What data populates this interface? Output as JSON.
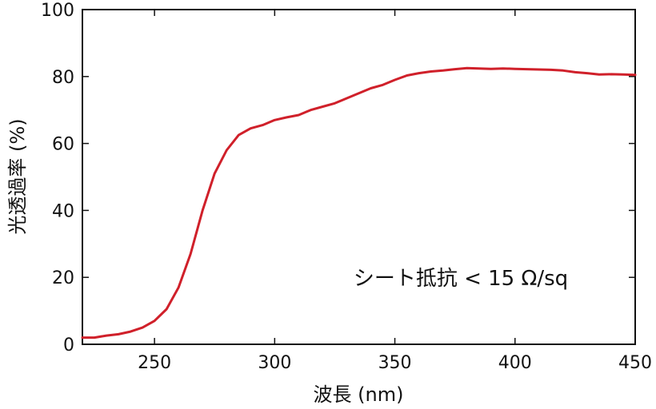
{
  "chart_data": {
    "type": "line",
    "title": "",
    "xlabel": "波長 (nm)",
    "ylabel": "光透過率 (%)",
    "xlim": [
      220,
      450
    ],
    "ylim": [
      0,
      100
    ],
    "x_ticks": [
      250,
      300,
      350,
      400,
      450
    ],
    "y_ticks": [
      0,
      20,
      40,
      60,
      80,
      100
    ],
    "x_tick_labels": [
      "250",
      "300",
      "350",
      "400",
      "450"
    ],
    "y_tick_labels": [
      "0",
      "20",
      "40",
      "60",
      "80",
      "100"
    ],
    "grid": false,
    "annotation": "シート抵抗 < 15 Ω/sq",
    "series": [
      {
        "color": "#d0202a",
        "x": [
          220,
          225,
          230,
          235,
          240,
          245,
          250,
          255,
          260,
          265,
          270,
          275,
          280,
          285,
          290,
          295,
          300,
          305,
          310,
          315,
          320,
          325,
          330,
          335,
          340,
          345,
          350,
          355,
          360,
          365,
          370,
          375,
          380,
          385,
          390,
          395,
          400,
          405,
          410,
          415,
          420,
          425,
          430,
          435,
          440,
          445,
          450
        ],
        "y": [
          2.0,
          2.0,
          2.6,
          3.0,
          3.8,
          5.0,
          7.0,
          10.5,
          17.0,
          27.0,
          40.0,
          51.0,
          58.0,
          62.5,
          64.5,
          65.5,
          67.0,
          67.8,
          68.5,
          70.0,
          71.0,
          72.0,
          73.5,
          75.0,
          76.5,
          77.5,
          79.0,
          80.3,
          81.0,
          81.5,
          81.8,
          82.2,
          82.5,
          82.4,
          82.3,
          82.4,
          82.3,
          82.2,
          82.1,
          82.0,
          81.8,
          81.3,
          81.0,
          80.6,
          80.7,
          80.6,
          80.5
        ]
      }
    ]
  },
  "colors": {
    "line": "#d0202a",
    "axis": "#111111",
    "background": "#ffffff"
  }
}
